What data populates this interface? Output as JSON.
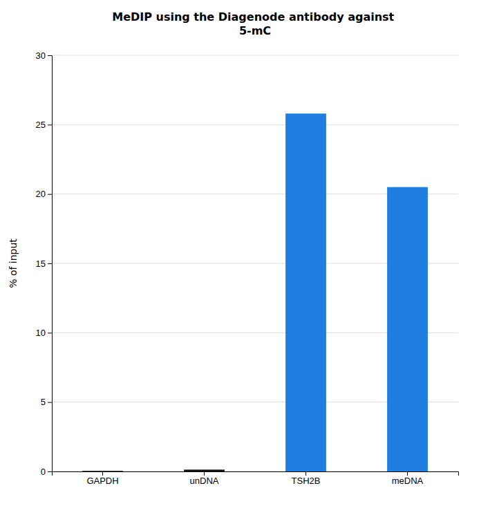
{
  "chart_data": {
    "type": "bar",
    "title": "MeDIP using the Diagenode antibody against\n5-mC",
    "categories": [
      "GAPDH",
      "unDNA",
      "TSH2B",
      "meDNA"
    ],
    "values": [
      0.04,
      0.13,
      25.8,
      20.5
    ],
    "colors": [
      "#111111",
      "#111111",
      "#1E7FE0",
      "#1E7FE0"
    ],
    "ylabel": "% of input",
    "ylim": [
      0,
      30
    ],
    "yticks": [
      0,
      5,
      10,
      15,
      20,
      25,
      30
    ],
    "grid": true
  }
}
